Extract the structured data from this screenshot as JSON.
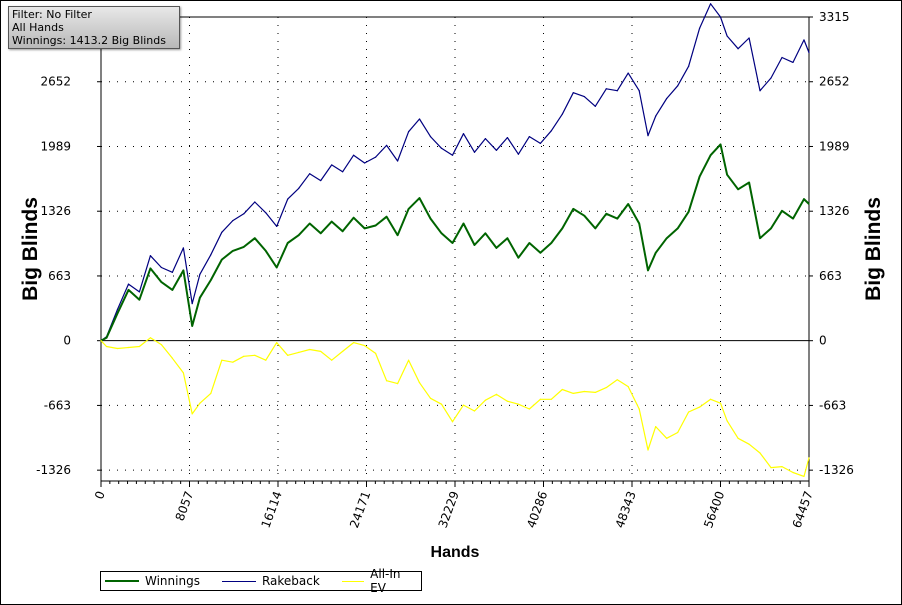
{
  "info_box": {
    "filter": "Filter: No Filter",
    "hands": "All Hands",
    "winnings": "Winnings: 1413.2 Big Blinds"
  },
  "chart_data": {
    "type": "line",
    "xlabel": "Hands",
    "ylabel_left": "Big Blinds",
    "ylabel_right": "Big Blinds",
    "xlim": [
      0,
      64457
    ],
    "ylim": [
      -1437,
      3315
    ],
    "x_ticks": [
      "0",
      "8057",
      "16114",
      "24171",
      "32229",
      "40286",
      "48343",
      "56400",
      "64457"
    ],
    "y_ticks_left": [
      "-1326",
      "-663",
      "0",
      "663",
      "1326",
      "1989",
      "2652"
    ],
    "y_ticks_right": [
      "-1326",
      "-663",
      "0",
      "663",
      "1326",
      "1989",
      "2652",
      "3315"
    ],
    "grid": true,
    "legend_position": "bottom-left",
    "series": [
      {
        "name": "Winnings",
        "color": "#006400",
        "x": [
          0,
          500,
          1500,
          2500,
          3500,
          4500,
          5500,
          6500,
          7500,
          8300,
          9000,
          10000,
          11000,
          12000,
          13000,
          14000,
          15000,
          16000,
          17000,
          18000,
          19000,
          20000,
          21000,
          22000,
          23000,
          24000,
          25000,
          26000,
          27000,
          28000,
          29000,
          30000,
          31000,
          32000,
          33000,
          34000,
          35000,
          36000,
          37000,
          38000,
          39000,
          40000,
          41000,
          42000,
          43000,
          44000,
          45000,
          46000,
          47000,
          48000,
          49000,
          49800,
          50500,
          51500,
          52500,
          53500,
          54500,
          55500,
          56400,
          57000,
          58000,
          59000,
          60000,
          61000,
          62000,
          63000,
          64000,
          64457
        ],
        "values": [
          0,
          30,
          280,
          520,
          420,
          740,
          600,
          520,
          720,
          150,
          440,
          620,
          830,
          920,
          960,
          1050,
          920,
          750,
          1000,
          1080,
          1200,
          1100,
          1220,
          1120,
          1260,
          1150,
          1180,
          1270,
          1080,
          1350,
          1460,
          1250,
          1100,
          1000,
          1200,
          980,
          1100,
          950,
          1050,
          850,
          1000,
          900,
          1000,
          1150,
          1350,
          1280,
          1150,
          1300,
          1250,
          1400,
          1200,
          720,
          900,
          1050,
          1150,
          1320,
          1680,
          1900,
          2010,
          1700,
          1550,
          1620,
          1050,
          1150,
          1330,
          1250,
          1450,
          1400
        ]
      },
      {
        "name": "Rakeback",
        "color": "#000080",
        "x": [
          0,
          500,
          1500,
          2500,
          3500,
          4500,
          5500,
          6500,
          7500,
          8300,
          9000,
          10000,
          11000,
          12000,
          13000,
          14000,
          15000,
          16000,
          17000,
          18000,
          19000,
          20000,
          21000,
          22000,
          23000,
          24000,
          25000,
          26000,
          27000,
          28000,
          29000,
          30000,
          31000,
          32000,
          33000,
          34000,
          35000,
          36000,
          37000,
          38000,
          39000,
          40000,
          41000,
          42000,
          43000,
          44000,
          45000,
          46000,
          47000,
          48000,
          49000,
          49800,
          50500,
          51500,
          52500,
          53500,
          54500,
          55500,
          56400,
          57000,
          58000,
          59000,
          60000,
          61000,
          62000,
          63000,
          64000,
          64457
        ],
        "values": [
          0,
          40,
          320,
          580,
          500,
          870,
          750,
          700,
          950,
          380,
          680,
          880,
          1110,
          1230,
          1300,
          1420,
          1310,
          1170,
          1450,
          1560,
          1710,
          1640,
          1800,
          1730,
          1900,
          1820,
          1880,
          2000,
          1840,
          2140,
          2270,
          2090,
          1970,
          1900,
          2120,
          1930,
          2070,
          1950,
          2080,
          1910,
          2090,
          2020,
          2150,
          2320,
          2540,
          2500,
          2400,
          2580,
          2560,
          2740,
          2560,
          2100,
          2300,
          2480,
          2610,
          2810,
          3200,
          3450,
          3315,
          3120,
          2990,
          3100,
          2560,
          2690,
          2900,
          2850,
          3080,
          2950
        ]
      },
      {
        "name": "All-In EV",
        "color": "#ffff00",
        "x": [
          0,
          500,
          1500,
          2500,
          3500,
          4500,
          5500,
          6500,
          7500,
          8300,
          9000,
          10000,
          11000,
          12000,
          13000,
          14000,
          15000,
          16000,
          17000,
          18000,
          19000,
          20000,
          21000,
          22000,
          23000,
          24000,
          25000,
          26000,
          27000,
          28000,
          29000,
          30000,
          31000,
          32000,
          33000,
          34000,
          35000,
          36000,
          37000,
          38000,
          39000,
          40000,
          41000,
          42000,
          43000,
          44000,
          45000,
          46000,
          47000,
          48000,
          49000,
          49800,
          50500,
          51500,
          52500,
          53500,
          54500,
          55500,
          56400,
          57000,
          58000,
          59000,
          60000,
          61000,
          62000,
          63000,
          64000,
          64457
        ],
        "values": [
          0,
          -60,
          -80,
          -70,
          -60,
          30,
          -40,
          -180,
          -330,
          -750,
          -640,
          -540,
          -200,
          -220,
          -160,
          -150,
          -200,
          -20,
          -150,
          -120,
          -90,
          -110,
          -200,
          -110,
          -20,
          -50,
          -130,
          -410,
          -440,
          -200,
          -430,
          -590,
          -650,
          -830,
          -660,
          -720,
          -610,
          -550,
          -620,
          -650,
          -700,
          -600,
          -600,
          -500,
          -540,
          -520,
          -530,
          -480,
          -400,
          -470,
          -700,
          -1120,
          -880,
          -1000,
          -940,
          -730,
          -680,
          -600,
          -640,
          -820,
          -1000,
          -1060,
          -1150,
          -1300,
          -1290,
          -1350,
          -1390,
          -1200
        ]
      }
    ]
  }
}
